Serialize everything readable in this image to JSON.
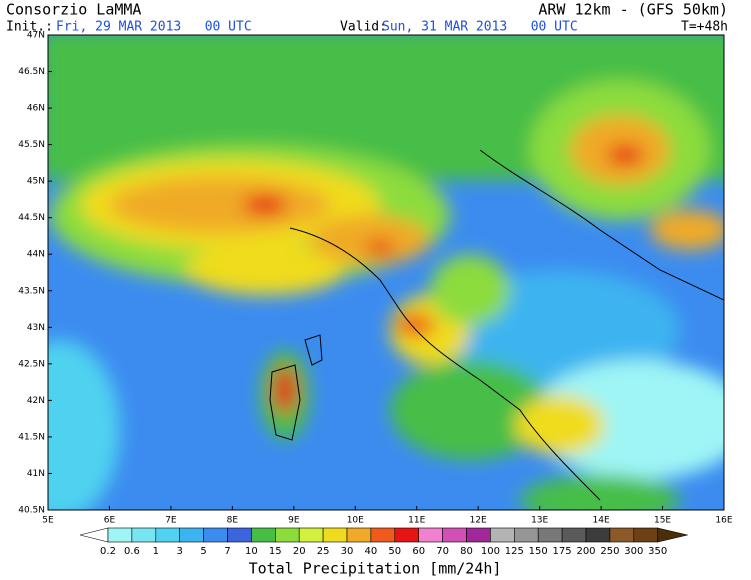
{
  "header": {
    "title": "Consorzio LaMMA",
    "model": "ARW 12km - (GFS 50km)",
    "init_label": "Init.:",
    "init_date": "Fri, 29 MAR 2013   00 UTC",
    "valid_label": "Valid:",
    "valid_date": "Sun, 31 MAR 2013   00 UTC",
    "lead_time": "T=+48h"
  },
  "map": {
    "lat_labels": [
      "47N",
      "46.5N",
      "46N",
      "45.5N",
      "45N",
      "44.5N",
      "44N",
      "43.5N",
      "43N",
      "42.5N",
      "42N",
      "41.5N",
      "41N",
      "40.5N"
    ],
    "lon_labels": [
      "5E",
      "6E",
      "7E",
      "8E",
      "9E",
      "10E",
      "11E",
      "12E",
      "13E",
      "14E",
      "15E",
      "16E"
    ]
  },
  "colorbar": {
    "levels": [
      0.2,
      0.6,
      1,
      3,
      5,
      7,
      10,
      15,
      20,
      25,
      30,
      40,
      50,
      60,
      70,
      80,
      100,
      125,
      150,
      175,
      200,
      250,
      300,
      350
    ],
    "colors": [
      "#ffffff",
      "#9ff5f5",
      "#78e6f0",
      "#50d2f0",
      "#3cb4f0",
      "#3c8cf0",
      "#3c64dc",
      "#46be46",
      "#8cdc3c",
      "#d2f03c",
      "#f0dc1e",
      "#f0aa28",
      "#f05a1e",
      "#e61414",
      "#f080d0",
      "#d250b4",
      "#a0289b",
      "#b4b4b4",
      "#969696",
      "#787878",
      "#5a5a5a",
      "#3c3c3c",
      "#8c5a28",
      "#6e4114",
      "#4b2d0a"
    ],
    "caption": "Total Precipitation [mm/24h]"
  }
}
